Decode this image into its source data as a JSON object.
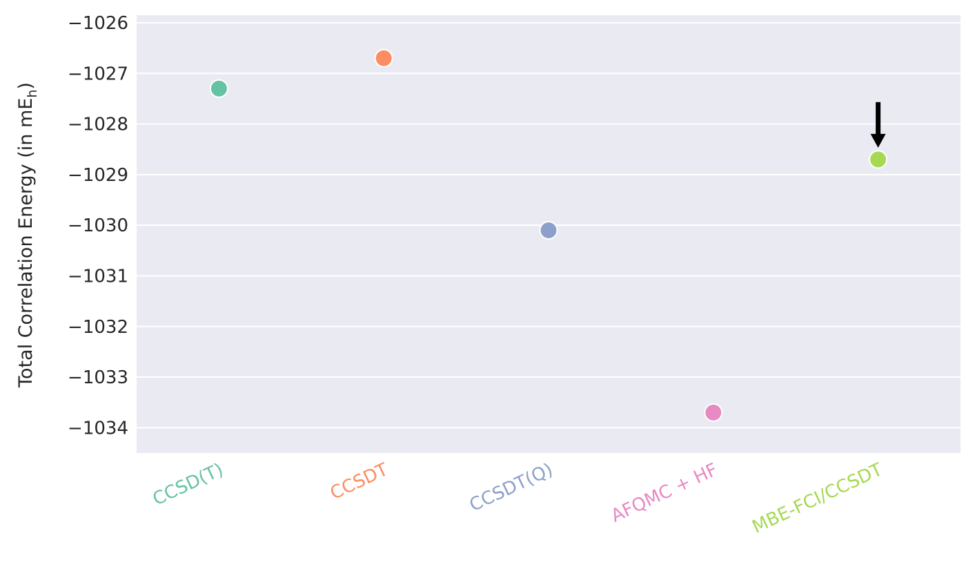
{
  "chart_data": {
    "type": "scatter",
    "title": "",
    "xlabel": "",
    "ylabel": "Total Correlation Energy (in mE",
    "ylabel_sub": "h",
    "ylabel_close": ")",
    "categories": [
      "CCSD(T)",
      "CCSDT",
      "CCSDT(Q)",
      "AFQMC + HF",
      "MBE-FCI/CCSDT"
    ],
    "values": [
      -1027.3,
      -1026.7,
      -1030.1,
      -1033.7,
      -1028.7
    ],
    "colors": [
      "#66c2a5",
      "#fc8d62",
      "#8da0cb",
      "#e78ac3",
      "#a6d854"
    ],
    "ylim": [
      -1034.5,
      -1025.85
    ],
    "yticks": [
      -1034,
      -1033,
      -1032,
      -1031,
      -1030,
      -1029,
      -1028,
      -1027,
      -1026
    ],
    "ytick_labels": [
      "−1034",
      "−1033",
      "−1032",
      "−1031",
      "−1030",
      "−1029",
      "−1028",
      "−1027",
      "−1026"
    ],
    "grid": true,
    "background": "#eaeaf2",
    "annotation": {
      "type": "arrow",
      "category_index": 4,
      "color": "#000000"
    }
  }
}
